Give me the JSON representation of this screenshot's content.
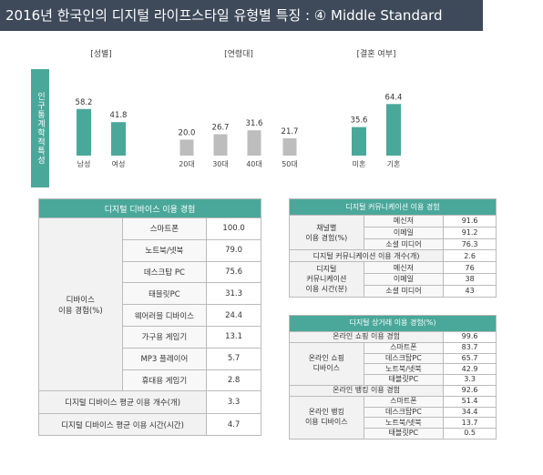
{
  "title": "2016년 한국인의 디지털 라이프스타일 유형별 특징 : ④ Middle Standard",
  "side_label": "인구통계학적특성",
  "colors": {
    "teal": "#4aa89a",
    "gray": "#bdbdbd",
    "header": "#3e4a5a"
  },
  "chart_data": [
    {
      "type": "bar",
      "title": "[성별]",
      "categories": [
        "남성",
        "여성"
      ],
      "values": [
        58.2,
        41.8
      ]
    },
    {
      "type": "bar",
      "title": "[연령대]",
      "categories": [
        "20대",
        "30대",
        "40대",
        "50대"
      ],
      "values": [
        20.0,
        26.7,
        31.6,
        21.7
      ]
    },
    {
      "type": "bar",
      "title": "[결혼 여부]",
      "categories": [
        "미혼",
        "기혼"
      ],
      "values": [
        35.6,
        64.4
      ]
    }
  ],
  "device_table": {
    "header": "디지털 디바이스 이용 경험",
    "group_label": "디바이스\n이용 경험(%)",
    "rows": [
      {
        "label": "스마트폰",
        "value": "100.0"
      },
      {
        "label": "노트북/넷북",
        "value": "79.0"
      },
      {
        "label": "데스크탑 PC",
        "value": "75.6"
      },
      {
        "label": "태블릿PC",
        "value": "31.3"
      },
      {
        "label": "웨어러블 디바이스",
        "value": "24.4"
      },
      {
        "label": "가구용 게임기",
        "value": "13.1"
      },
      {
        "label": "MP3 플레이어",
        "value": "5.7"
      },
      {
        "label": "휴대용 게임기",
        "value": "2.8"
      }
    ],
    "footer_rows": [
      {
        "label": "디지털 디바이스 평균 이용 개수(개)",
        "value": "3.3"
      },
      {
        "label": "디지털 디바이스 평균 이용 시간(시간)",
        "value": "4.7"
      }
    ]
  },
  "comm_table": {
    "header": "디지털 커뮤니케이션 이용 경험",
    "group1_label": "채널별\n이용 경험(%)",
    "group1": [
      {
        "label": "메신저",
        "value": "91.6"
      },
      {
        "label": "이메일",
        "value": "91.2"
      },
      {
        "label": "소셜 미디어",
        "value": "76.3"
      }
    ],
    "mid_row": {
      "label": "디지털 커뮤니케이션 이용 개수(개)",
      "value": "2.6"
    },
    "group2_label": "디지털\n커뮤니케이션\n이용 시간(분)",
    "group2": [
      {
        "label": "메신저",
        "value": "76"
      },
      {
        "label": "이메일",
        "value": "38"
      },
      {
        "label": "소셜 미디어",
        "value": "43"
      }
    ]
  },
  "ecom_table": {
    "header": "디지털 상거래 이용 경험(%)",
    "row1": {
      "label": "온라인 쇼핑 이용 경험",
      "value": "99.6"
    },
    "group1_label": "온라인 쇼핑\n디바이스",
    "group1": [
      {
        "label": "스마트폰",
        "value": "83.7"
      },
      {
        "label": "데스크탑PC",
        "value": "65.7"
      },
      {
        "label": "노트북/넷북",
        "value": "42.9"
      },
      {
        "label": "태블릿PC",
        "value": "3.3"
      }
    ],
    "row2": {
      "label": "온라인 뱅킹 이용 경험",
      "value": "92.6"
    },
    "group2_label": "온라인 뱅킹\n이용 디바이스",
    "group2": [
      {
        "label": "스마트폰",
        "value": "51.4"
      },
      {
        "label": "데스크탑PC",
        "value": "34.4"
      },
      {
        "label": "노트북/넷북",
        "value": "13.7"
      },
      {
        "label": "태블릿PC",
        "value": "0.5"
      }
    ]
  }
}
